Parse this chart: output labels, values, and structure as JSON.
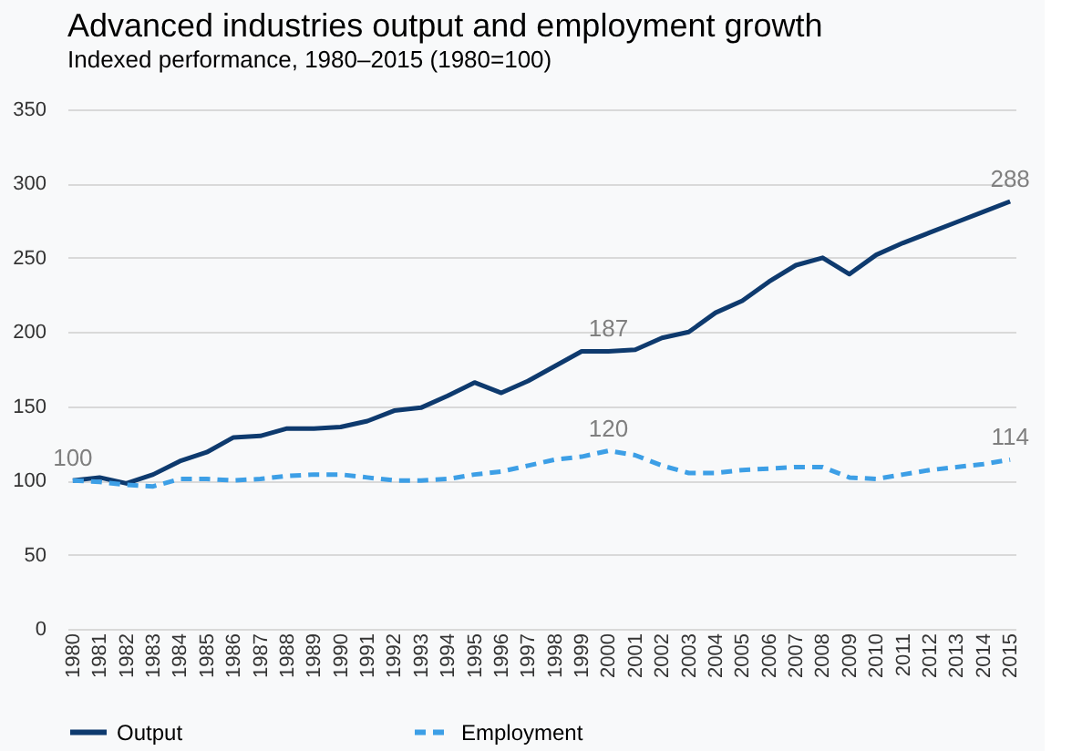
{
  "chart_data": {
    "type": "line",
    "title": "Advanced industries output and employment growth",
    "subtitle": "Indexed performance, 1980–2015 (1980=100)",
    "categories": [
      "1980",
      "1981",
      "1982",
      "1983",
      "1984",
      "1985",
      "1986",
      "1987",
      "1988",
      "1989",
      "1990",
      "1991",
      "1992",
      "1993",
      "1994",
      "1995",
      "1996",
      "1997",
      "1998",
      "1999",
      "2000",
      "2001",
      "2002",
      "2003",
      "2004",
      "2005",
      "2006",
      "2007",
      "2008",
      "2009",
      "2010",
      "2011",
      "2012",
      "2013",
      "2014",
      "2015"
    ],
    "series": [
      {
        "name": "Output",
        "color": "#0e3a6e",
        "line_style": "solid",
        "values": [
          100,
          102,
          98,
          104,
          113,
          119,
          129,
          130,
          135,
          135,
          136,
          140,
          147,
          149,
          157,
          166,
          159,
          167,
          177,
          187,
          187,
          188,
          196,
          200,
          213,
          221,
          234,
          245,
          250,
          239,
          252,
          260,
          267,
          274,
          281,
          288
        ]
      },
      {
        "name": "Employment",
        "color": "#3d9fe6",
        "line_style": "dashed",
        "values": [
          100,
          99,
          97,
          96,
          101,
          101,
          100,
          101,
          103,
          104,
          104,
          102,
          100,
          100,
          101,
          104,
          106,
          110,
          114,
          116,
          120,
          117,
          110,
          105,
          105,
          107,
          108,
          109,
          109,
          102,
          101,
          104,
          107,
          109,
          111,
          114
        ]
      }
    ],
    "annotations": [
      {
        "text": "100",
        "x": "1980",
        "y": 100
      },
      {
        "text": "187",
        "x": "2000",
        "y": 187
      },
      {
        "text": "120",
        "x": "2000",
        "y": 120
      },
      {
        "text": "288",
        "x": "2015",
        "y": 288
      },
      {
        "text": "114",
        "x": "2015",
        "y": 114
      }
    ],
    "ylim": [
      0,
      350
    ],
    "yticks": [
      0,
      50,
      100,
      150,
      200,
      250,
      300,
      350
    ],
    "grid": "y",
    "legend": "bottom",
    "marker": "none"
  }
}
